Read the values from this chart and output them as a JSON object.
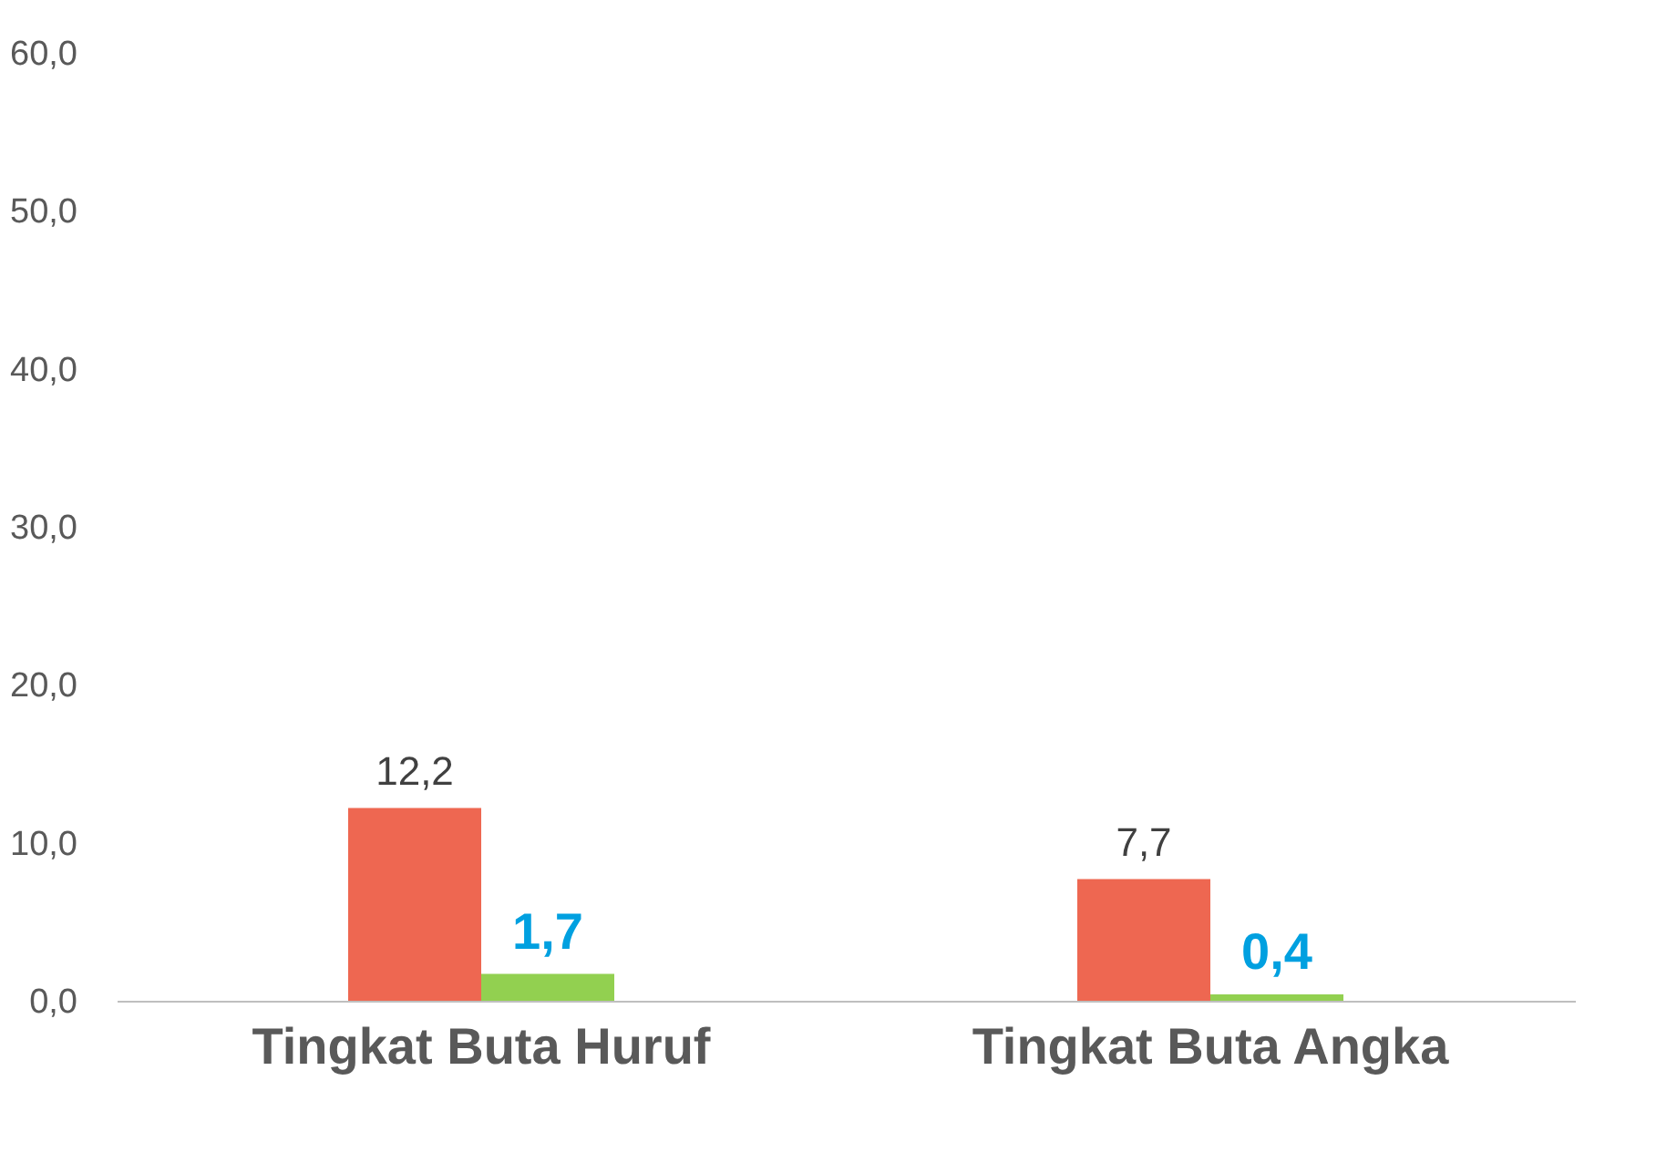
{
  "chart_data": {
    "type": "bar",
    "categories": [
      "Tingkat Buta Huruf",
      "Tingkat Buta Angka"
    ],
    "series": [
      {
        "color": "#ee6751",
        "values": [
          12.2,
          7.7
        ],
        "value_labels": [
          "12,2",
          "7,7"
        ]
      },
      {
        "color": "#92d050",
        "values": [
          1.7,
          0.4
        ],
        "value_labels": [
          "1,7",
          "0,4"
        ]
      }
    ],
    "ylim": [
      0,
      60
    ],
    "yticks": [
      {
        "value": 0,
        "label": "0,0"
      },
      {
        "value": 10,
        "label": "10,0"
      },
      {
        "value": 20,
        "label": "20,0"
      },
      {
        "value": 30,
        "label": "30,0"
      },
      {
        "value": 40,
        "label": "40,0"
      },
      {
        "value": 50,
        "label": "50,0"
      },
      {
        "value": 60,
        "label": "60,0"
      }
    ],
    "grid": false,
    "legend": false
  }
}
